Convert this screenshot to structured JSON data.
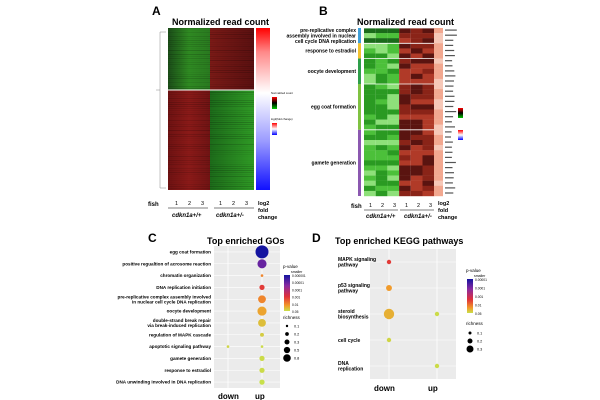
{
  "panels": {
    "A": {
      "letter": "A",
      "title": "Normalized read count",
      "fish_label": "fish",
      "lane_numbers": [
        "1",
        "2",
        "3",
        "1",
        "2",
        "3"
      ],
      "group_labels": [
        "cdkn1a+/+",
        "cdkn1a+/-"
      ],
      "fc_label": [
        "log2",
        "fold",
        "change"
      ],
      "legend_titles": [
        "Normalized count",
        "log2(fold change)"
      ]
    },
    "B": {
      "letter": "B",
      "title": "Normalized read count",
      "fish_label": "fish",
      "lane_numbers": [
        "1",
        "2",
        "3",
        "1",
        "2",
        "3"
      ],
      "group_labels": [
        "cdkn1a+/+",
        "cdkn1a+/-"
      ],
      "fc_label": [
        "log2",
        "fold",
        "change"
      ],
      "go_groups": [
        {
          "label": [
            "pre-replicative complex",
            "assembly involved in nuclear",
            "cell cycle DNA replication"
          ],
          "color": "#3f9fd8",
          "rows": 3
        },
        {
          "label": [
            "response to estradiol"
          ],
          "color": "#f2c230",
          "rows": 3
        },
        {
          "label": [
            "oocyte development"
          ],
          "color": "#2e9e4a",
          "rows": 5
        },
        {
          "label": [
            "egg coat formation"
          ],
          "color": "#7fc241",
          "rows": 9
        },
        {
          "label": [
            "gamete generation"
          ],
          "color": "#8b58b0",
          "rows": 13
        }
      ]
    },
    "C": {
      "letter": "C",
      "title": "Top enriched GOs",
      "x_categories": [
        "down",
        "up"
      ],
      "terms": [
        "egg coat formation",
        "positive regualtion of acrosome reaction",
        "chromatin organization",
        "DNA replication initiation",
        "pre-replicative complex assembly involved\nin nuclear cell cycle DNA replication",
        "oocyte development",
        "double-strand break repair\nvia break-induced replication",
        "regulation of MAPK cascade",
        "apoptotic signaling pathway",
        "gamete generation",
        "response to estradiol",
        "DNA unwinding involved in DNA replication"
      ],
      "legend_p_title": "p-value",
      "legend_p_sub": "smaller",
      "legend_p_ticks": [
        "0.000001",
        "0.00001",
        "0.0001",
        "0.001",
        "0.01",
        "0.05"
      ],
      "legend_r_title": "richness",
      "legend_r_sub": "",
      "legend_r_ticks": [
        "0.1",
        "0.2",
        "0.3",
        "0.5",
        "0.8"
      ]
    },
    "D": {
      "letter": "D",
      "title": "Top enriched KEGG pathways",
      "x_categories": [
        "down",
        "up"
      ],
      "terms": [
        "MAPK signaling\npathway",
        "p53 signaling\npathway",
        "steroid\nbiosynthesis",
        "cell cycle",
        "DNA\nreplication"
      ],
      "legend_p_title": "p-value",
      "legend_p_sub": "smaller",
      "legend_p_ticks": [
        "0.00001",
        "0.0001",
        "0.001",
        "0.01",
        "0.05"
      ],
      "legend_r_title": "richness",
      "legend_r_sub": "",
      "legend_r_ticks": [
        "0.1",
        "0.2",
        "0.3"
      ]
    }
  },
  "chart_data": [
    {
      "type": "scatter",
      "title": "Top enriched GOs",
      "x": [
        "down",
        "up"
      ],
      "points": [
        {
          "term": "egg coat formation",
          "category": "up",
          "p": 1e-07,
          "richness": 0.9
        },
        {
          "term": "positive regualtion of acrosome reaction",
          "category": "up",
          "p": 1e-06,
          "richness": 0.6
        },
        {
          "term": "chromatin organization",
          "category": "up",
          "p": 0.001,
          "richness": 0.1
        },
        {
          "term": "DNA replication initiation",
          "category": "up",
          "p": 0.0001,
          "richness": 0.3
        },
        {
          "term": "pre-replicative complex assembly involved\nin nuclear cell cycle DNA replication",
          "category": "up",
          "p": 0.001,
          "richness": 0.5
        },
        {
          "term": "oocyte development",
          "category": "up",
          "p": 0.003,
          "richness": 0.6
        },
        {
          "term": "double-strand break repair\nvia break-induced replication",
          "category": "up",
          "p": 0.01,
          "richness": 0.5
        },
        {
          "term": "regulation of MAPK cascade",
          "category": "up",
          "p": 0.02,
          "richness": 0.2
        },
        {
          "term": "apoptotic signaling pathway",
          "category": "down",
          "p": 0.03,
          "richness": 0.1
        },
        {
          "term": "apoptotic signaling pathway",
          "category": "up",
          "p": 0.04,
          "richness": 0.1
        },
        {
          "term": "gamete generation",
          "category": "up",
          "p": 0.04,
          "richness": 0.3
        },
        {
          "term": "response to estradiol",
          "category": "up",
          "p": 0.04,
          "richness": 0.3
        },
        {
          "term": "DNA unwinding involved in DNA replication",
          "category": "up",
          "p": 0.05,
          "richness": 0.3
        }
      ],
      "color_scale": {
        "legend_min": 1e-06,
        "legend_max": 0.05
      },
      "size_scale": {
        "min": 0.1,
        "max": 0.8
      }
    },
    {
      "type": "scatter",
      "title": "Top enriched KEGG pathways",
      "x": [
        "down",
        "up"
      ],
      "points": [
        {
          "term": "MAPK signaling\npathway",
          "category": "down",
          "p": 0.0001,
          "richness": 0.1
        },
        {
          "term": "p53 signaling\npathway",
          "category": "down",
          "p": 0.002,
          "richness": 0.15
        },
        {
          "term": "steroid\nbiosynthesis",
          "category": "down",
          "p": 0.005,
          "richness": 0.3
        },
        {
          "term": "steroid\nbiosynthesis",
          "category": "up",
          "p": 0.04,
          "richness": 0.1
        },
        {
          "term": "cell cycle",
          "category": "down",
          "p": 0.03,
          "richness": 0.1
        },
        {
          "term": "DNA\nreplication",
          "category": "up",
          "p": 0.04,
          "richness": 0.1
        }
      ],
      "color_scale": {
        "legend_min": 1e-05,
        "legend_max": 0.05
      },
      "size_scale": {
        "min": 0.1,
        "max": 0.3
      }
    },
    {
      "type": "heatmap",
      "title": "Normalized read count",
      "columns": [
        "1",
        "2",
        "3",
        "1",
        "2",
        "3"
      ],
      "column_groups": [
        "cdkn1a+/+",
        "cdkn1a+/-"
      ],
      "blocks": [
        {
          "rows_fraction": 0.38,
          "values": [
            -1,
            -1,
            -1,
            1,
            1,
            1
          ]
        },
        {
          "rows_fraction": 0.62,
          "values": [
            1,
            1,
            1,
            -1,
            -1,
            -1
          ]
        }
      ]
    }
  ]
}
